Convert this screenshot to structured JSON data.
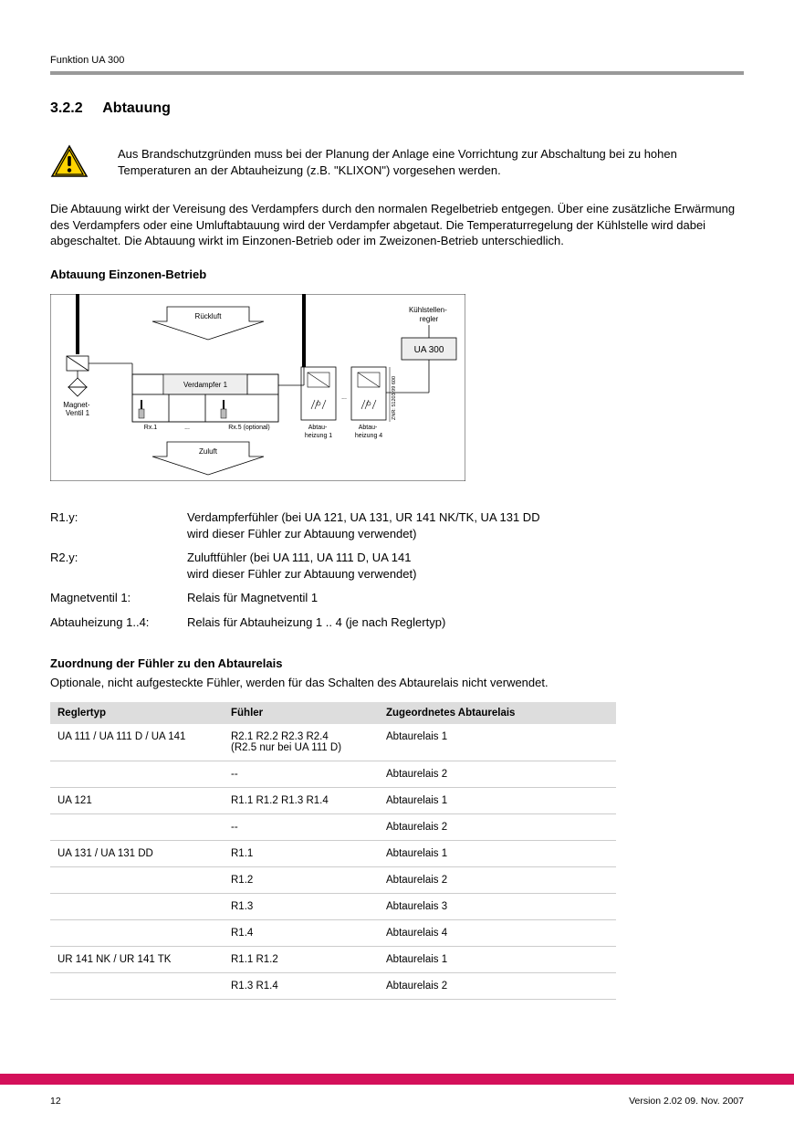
{
  "header": {
    "text": "Funktion UA 300"
  },
  "section": {
    "number": "3.2.2",
    "title": "Abtauung"
  },
  "warning": {
    "text": "Aus Brandschutzgründen muss bei der Planung der Anlage eine Vorrichtung zur Abschaltung bei zu hohen Temperaturen an der Abtauheizung (z.B. \"KLIXON\") vorgesehen werden."
  },
  "paragraph1": "Die Abtauung wirkt der Vereisung des Verdampfers durch den normalen Regelbetrieb entgegen. Über eine zusätzliche Erwärmung des Verdampfers oder eine Umluftabtauung wird der Verdampfer abgetaut. Die Temperaturregelung der Kühlstelle wird dabei abgeschaltet. Die Abtauung wirkt im Einzonen-Betrieb oder im Zweizonen-Betrieb unterschiedlich.",
  "sub1": "Abtauung Einzonen-Betrieb",
  "diagram": {
    "ruckluft": "Rückluft",
    "kuhlstellen": "Kühlstellen-\nregler",
    "ua300": "UA 300",
    "verdampfer": "Verdampfer 1",
    "magnet": "Magnet-\nVentil 1",
    "rx1": "Rx.1",
    "dots": "...",
    "rx5": "Rx.5 (optional)",
    "abtau1": "Abtau-\nheizung 1",
    "abtau4": "Abtau-\nheizung 4",
    "zuluft": "Zuluft",
    "znr": "ZNR: 51203 99 600"
  },
  "definitions": [
    {
      "term": "R1.y:",
      "value": "Verdampferfühler (bei UA 121, UA 131, UR 141 NK/TK, UA 131 DD\nwird dieser Fühler zur Abtauung verwendet)"
    },
    {
      "term": "R2.y:",
      "value": "Zuluftfühler (bei UA 111, UA 111 D, UA 141\nwird dieser Fühler zur Abtauung verwendet)"
    },
    {
      "term": "Magnetventil 1:",
      "value": "Relais für Magnetventil 1"
    },
    {
      "term": "Abtauheizung 1..4:",
      "value": "Relais für Abtauheizung 1 .. 4 (je nach Reglertyp)"
    }
  ],
  "tableSection": {
    "heading": "Zuordnung der Fühler zu den Abtaurelais",
    "intro": "Optionale, nicht aufgesteckte Fühler, werden für das Schalten des Abtaurelais nicht verwendet."
  },
  "tableHeaders": [
    "Reglertyp",
    "Fühler",
    "Zugeordnetes Abtaurelais"
  ],
  "tableRows": [
    [
      "UA 111 / UA 111 D / UA 141",
      "R2.1 R2.2 R2.3 R2.4\n(R2.5 nur bei UA 111 D)",
      "Abtaurelais 1"
    ],
    [
      "",
      "--",
      "Abtaurelais 2"
    ],
    [
      "UA 121",
      "R1.1 R1.2 R1.3 R1.4",
      "Abtaurelais 1"
    ],
    [
      "",
      "--",
      "Abtaurelais 2"
    ],
    [
      "UA 131 / UA 131 DD",
      "R1.1",
      "Abtaurelais 1"
    ],
    [
      "",
      "R1.2",
      "Abtaurelais 2"
    ],
    [
      "",
      "R1.3",
      "Abtaurelais 3"
    ],
    [
      "",
      "R1.4",
      "Abtaurelais 4"
    ],
    [
      "UR 141 NK / UR 141 TK",
      "R1.1 R1.2",
      "Abtaurelais 1"
    ],
    [
      "",
      "R1.3 R1.4",
      "Abtaurelais 2"
    ]
  ],
  "footer": {
    "page": "12",
    "version": "Version 2.02   09. Nov. 2007"
  },
  "colors": {
    "headerBar": "#999999",
    "footerBar": "#d4105a",
    "tableHeader": "#dddddd",
    "tableBorder": "#cccccc",
    "warnYellow": "#ffd400",
    "warnBorder": "#000000"
  }
}
